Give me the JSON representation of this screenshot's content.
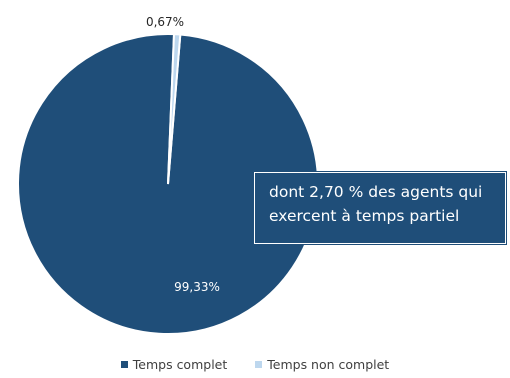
{
  "chart_data": {
    "type": "pie",
    "categories": [
      "Temps complet",
      "Temps non complet"
    ],
    "values": [
      99.33,
      0.67
    ],
    "data_labels": [
      "99,33%",
      "0,67%"
    ],
    "colors": [
      "#1f4e79",
      "#bdd7ee"
    ],
    "legend_position": "bottom",
    "annotation": "dont 2,70 % des agents qui exercent à temps partiel"
  },
  "annotation_lines": [
    "dont 2,70 % des agents qui",
    "exercent à temps partiel"
  ]
}
